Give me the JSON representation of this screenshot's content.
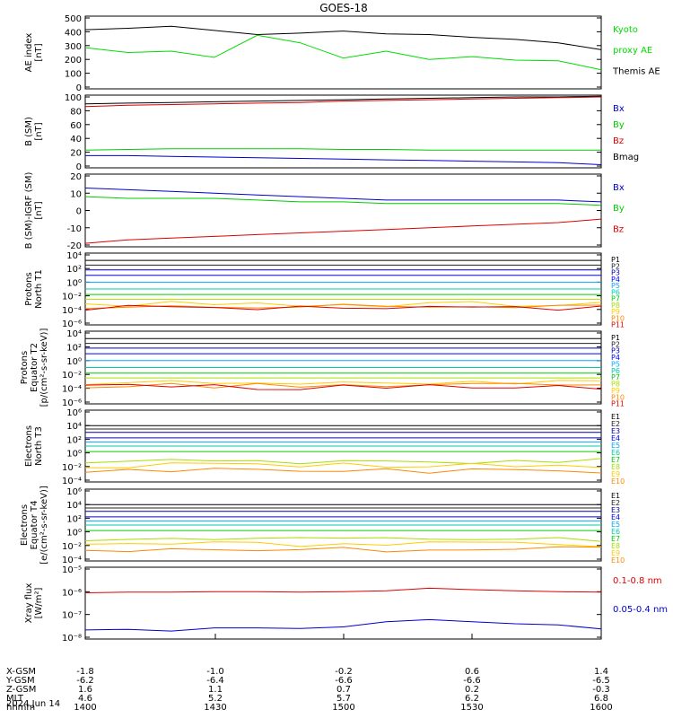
{
  "title": "GOES-18",
  "colors": {
    "black": "#000000",
    "green": "#00dd00",
    "blue": "#0000cc",
    "red": "#dd0000",
    "p_series": [
      "#000000",
      "#222222",
      "#0000aa",
      "#0000ff",
      "#00aaff",
      "#00ccaa",
      "#00cc00",
      "#aadd00",
      "#ffcc00",
      "#ff8800",
      "#dd0000",
      "#aa0000"
    ]
  },
  "panels": [
    {
      "id": "ae",
      "ylabel": [
        "AE index",
        "[nT]"
      ],
      "yticks": [
        "500",
        "400",
        "300",
        "200",
        "100",
        "0"
      ],
      "legend": [
        {
          "text": "Kyoto",
          "color": "#00dd00"
        },
        {
          "text": "proxy AE",
          "color": "#00dd00"
        },
        {
          "text": "Themis AE",
          "color": "#000000"
        }
      ]
    },
    {
      "id": "bsm",
      "ylabel": [
        "B (SM)",
        "[nT]"
      ],
      "yticks": [
        "100",
        "80",
        "60",
        "40",
        "20",
        "0"
      ],
      "legend": [
        {
          "text": "Bx",
          "color": "#0000cc"
        },
        {
          "text": "By",
          "color": "#00cc00"
        },
        {
          "text": "Bz",
          "color": "#dd0000"
        },
        {
          "text": "Bmag",
          "color": "#000000"
        }
      ]
    },
    {
      "id": "bigrf",
      "ylabel": [
        "B (SM)-IGRF (SM)",
        "[nT]"
      ],
      "yticks": [
        "20",
        "10",
        "0",
        "-10",
        "-20"
      ],
      "legend": [
        {
          "text": "Bx",
          "color": "#0000cc"
        },
        {
          "text": "By",
          "color": "#00cc00"
        },
        {
          "text": "Bz",
          "color": "#dd0000"
        }
      ]
    },
    {
      "id": "p_north",
      "ylabel": [
        "Protons",
        "North T1"
      ],
      "yticks": [
        "10⁴",
        "10²",
        "10⁰",
        "10⁻²",
        "10⁻⁴",
        "10⁻⁶"
      ],
      "legend": [
        "P1",
        "P2",
        "P3",
        "P4",
        "P5",
        "P6",
        "P7",
        "P8",
        "P9",
        "P10",
        "P11"
      ]
    },
    {
      "id": "p_equator",
      "ylabel": [
        "Protons",
        "Equator T2",
        "[p/(cm²-s-sr-keV)]"
      ],
      "yticks": [
        "10⁴",
        "10²",
        "10⁰",
        "10⁻²",
        "10⁻⁴",
        "10⁻⁶"
      ],
      "legend": [
        "P1",
        "P2",
        "P3",
        "P4",
        "P5",
        "P6",
        "P7",
        "P8",
        "P9",
        "P10",
        "P11"
      ]
    },
    {
      "id": "e_north",
      "ylabel": [
        "Electrons",
        "North T3"
      ],
      "yticks": [
        "10⁶",
        "10⁴",
        "10²",
        "10⁰",
        "10⁻²",
        "10⁻⁴"
      ],
      "legend": [
        "E1",
        "E2",
        "E3",
        "E4",
        "E5",
        "E6",
        "E7",
        "E8",
        "E9",
        "E10"
      ]
    },
    {
      "id": "e_equator",
      "ylabel": [
        "Electrons",
        "Equator T4",
        "[e/(cm²-s-sr-keV)]"
      ],
      "yticks": [
        "10⁶",
        "10⁴",
        "10²",
        "10⁰",
        "10⁻²",
        "10⁻⁴"
      ],
      "legend": [
        "E1",
        "E2",
        "E3",
        "E4",
        "E5",
        "E6",
        "E7",
        "E8",
        "E9",
        "E10"
      ]
    },
    {
      "id": "xray",
      "ylabel": [
        "Xray flux",
        "[W/m²]"
      ],
      "yticks": [
        "10⁻⁵",
        "10⁻⁶",
        "10⁻⁷",
        "10⁻⁸"
      ],
      "legend": [
        {
          "text": "0.1-0.8 nm",
          "color": "#dd0000"
        },
        {
          "text": "0.05-0.4 nm",
          "color": "#0000cc"
        }
      ]
    }
  ],
  "xaxis": {
    "rows": [
      {
        "label": "X-GSM",
        "values": [
          "-1.8",
          "-1.0",
          "-0.2",
          "0.6",
          "1.4"
        ]
      },
      {
        "label": "Y-GSM",
        "values": [
          "-6.2",
          "-6.4",
          "-6.6",
          "-6.6",
          "-6.5"
        ]
      },
      {
        "label": "Z-GSM",
        "values": [
          "1.6",
          "1.1",
          "0.7",
          "0.2",
          "-0.3"
        ]
      },
      {
        "label": "MLT",
        "values": [
          "4.6",
          "5.2",
          "5.7",
          "6.2",
          "6.8"
        ]
      },
      {
        "label": "hhmm",
        "values": [
          "1400",
          "1430",
          "1500",
          "1530",
          "1600"
        ]
      }
    ],
    "date": "2024 Jun 14"
  },
  "chart_data": {
    "type": "line",
    "title": "GOES-18",
    "x_time": [
      "1400",
      "1410",
      "1420",
      "1430",
      "1440",
      "1450",
      "1500",
      "1510",
      "1520",
      "1530",
      "1540",
      "1550",
      "1600"
    ],
    "panels": [
      {
        "name": "AE index",
        "ylabel": "AE index [nT]",
        "ylim": [
          0,
          500
        ],
        "series": [
          {
            "name": "Themis AE",
            "values": [
              415,
              425,
              440,
              410,
              380,
              390,
              405,
              385,
              380,
              360,
              345,
              320,
              270
            ]
          },
          {
            "name": "Kyoto proxy AE",
            "values": [
              285,
              250,
              260,
              215,
              375,
              320,
              210,
              260,
              200,
              220,
              195,
              190,
              125
            ]
          }
        ]
      },
      {
        "name": "B (SM)",
        "ylabel": "B (SM) [nT]",
        "ylim": [
          0,
          100
        ],
        "series": [
          {
            "name": "Bmag",
            "values": [
              90,
              91,
              92,
              93,
              94,
              95,
              96,
              97,
              98,
              99,
              100,
              100,
              101
            ]
          },
          {
            "name": "Bz",
            "values": [
              86,
              88,
              89,
              90,
              91,
              92,
              94,
              95,
              96,
              97,
              98,
              99,
              100
            ]
          },
          {
            "name": "By",
            "values": [
              23,
              24,
              25,
              25,
              25,
              25,
              24,
              24,
              23,
              23,
              23,
              23,
              23
            ]
          },
          {
            "name": "Bx",
            "values": [
              15,
              15,
              14,
              13,
              12,
              11,
              10,
              9,
              8,
              7,
              6,
              5,
              2
            ]
          }
        ]
      },
      {
        "name": "B (SM)-IGRF (SM)",
        "ylabel": "B (SM)-IGRF (SM) [nT]",
        "ylim": [
          -20,
          20
        ],
        "series": [
          {
            "name": "Bx",
            "values": [
              13,
              12,
              11,
              10,
              9,
              8,
              7,
              6,
              6,
              6,
              6,
              6,
              5
            ]
          },
          {
            "name": "By",
            "values": [
              8,
              7,
              7,
              7,
              6,
              5,
              5,
              4,
              4,
              4,
              4,
              4,
              3
            ]
          },
          {
            "name": "Bz",
            "values": [
              -19,
              -17,
              -16,
              -15,
              -14,
              -13,
              -12,
              -11,
              -10,
              -9,
              -8,
              -7,
              -5
            ]
          }
        ]
      },
      {
        "name": "Protons North T1",
        "log": true,
        "ylim_exp": [
          -6,
          4
        ],
        "series": [
          {
            "name": "P1",
            "level": 3.2
          },
          {
            "name": "P2",
            "level": 2.5
          },
          {
            "name": "P3",
            "level": 1.8
          },
          {
            "name": "P4",
            "level": 1.0
          },
          {
            "name": "P5",
            "level": 0.0
          },
          {
            "name": "P6",
            "level": -1.0
          },
          {
            "name": "P7",
            "level": -1.8
          },
          {
            "name": "P8",
            "level": -2.5
          },
          {
            "name": "P9",
            "level": -3.2
          },
          {
            "name": "P10",
            "level": -3.6
          },
          {
            "name": "P11",
            "level": -3.8
          }
        ]
      },
      {
        "name": "Protons Equator T2",
        "log": true,
        "ylim_exp": [
          -6,
          4
        ],
        "series": [
          {
            "name": "P1",
            "level": 3.2
          },
          {
            "name": "P2",
            "level": 2.5
          },
          {
            "name": "P3",
            "level": 1.8
          },
          {
            "name": "P4",
            "level": 1.0
          },
          {
            "name": "P5",
            "level": 0.0
          },
          {
            "name": "P6",
            "level": -1.0
          },
          {
            "name": "P7",
            "level": -1.8
          },
          {
            "name": "P8",
            "level": -2.5
          },
          {
            "name": "P9",
            "level": -3.2
          },
          {
            "name": "P10",
            "level": -3.6
          },
          {
            "name": "P11",
            "level": -3.8
          }
        ]
      },
      {
        "name": "Electrons North T3",
        "log": true,
        "ylim_exp": [
          -4,
          6
        ],
        "series": [
          {
            "name": "E1",
            "level": 4.0
          },
          {
            "name": "E2",
            "level": 3.5
          },
          {
            "name": "E3",
            "level": 3.0
          },
          {
            "name": "E4",
            "level": 2.2
          },
          {
            "name": "E5",
            "level": 1.6
          },
          {
            "name": "E6",
            "level": 1.0
          },
          {
            "name": "E7",
            "level": 0.2
          },
          {
            "name": "E8",
            "level": -1.2
          },
          {
            "name": "E9",
            "level": -1.8
          },
          {
            "name": "E10",
            "level": -2.6
          }
        ]
      },
      {
        "name": "Electrons Equator T4",
        "log": true,
        "ylim_exp": [
          -4,
          6
        ],
        "series": [
          {
            "name": "E1",
            "level": 4.0
          },
          {
            "name": "E2",
            "level": 3.5
          },
          {
            "name": "E3",
            "level": 3.0
          },
          {
            "name": "E4",
            "level": 2.2
          },
          {
            "name": "E5",
            "level": 1.6
          },
          {
            "name": "E6",
            "level": 1.0
          },
          {
            "name": "E7",
            "level": 0.2
          },
          {
            "name": "E8",
            "level": -1.2
          },
          {
            "name": "E9",
            "level": -1.8
          },
          {
            "name": "E10",
            "level": -2.6
          }
        ]
      },
      {
        "name": "Xray flux",
        "ylabel": "Xray flux [W/m²]",
        "log": true,
        "ylim_exp": [
          -8.3,
          -5
        ],
        "series": [
          {
            "name": "0.1-0.8 nm",
            "values": [
              -6.15,
              -6.12,
              -6.12,
              -6.1,
              -6.1,
              -6.12,
              -6.1,
              -6.05,
              -5.93,
              -6.0,
              -6.05,
              -6.1,
              -6.12
            ]
          },
          {
            "name": "0.05-0.4 nm",
            "values": [
              -7.95,
              -7.92,
              -8.0,
              -7.85,
              -7.85,
              -7.88,
              -7.8,
              -7.55,
              -7.45,
              -7.55,
              -7.65,
              -7.7,
              -7.9
            ]
          }
        ]
      }
    ]
  }
}
